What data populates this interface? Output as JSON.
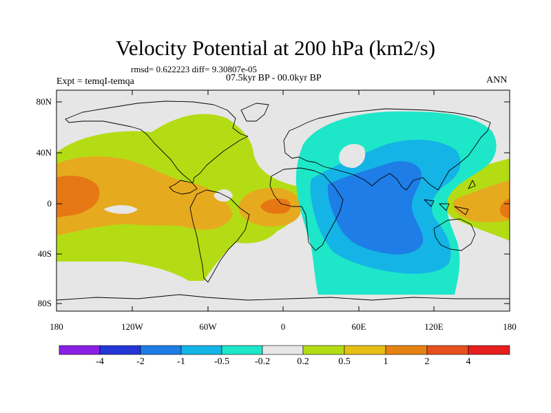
{
  "title": "Velocity Potential at 200 hPa (km2/s)",
  "stats": "rmsd= 0.622223 diff= 9.30807e-05",
  "period": "07.5kyr BP - 00.0kyr BP",
  "experiment": "Expt = temqI-temqa",
  "season": "ANN",
  "lat_labels": [
    "80N",
    "40N",
    "0",
    "40S",
    "80S"
  ],
  "lon_labels": [
    "180",
    "120W",
    "60W",
    "0",
    "60E",
    "120E",
    "180"
  ],
  "colorbar": {
    "labels": [
      "-4",
      "-2",
      "-1",
      "-0.5",
      "-0.2",
      "0.2",
      "0.5",
      "1",
      "2",
      "4"
    ],
    "colors": [
      "#8a1ee6",
      "#2436d6",
      "#1e7de6",
      "#14b4e6",
      "#1ee6c8",
      "#e6e6e6",
      "#b4dc14",
      "#e6be14",
      "#e68214",
      "#e6501e",
      "#e61e1e"
    ]
  },
  "field_colors": {
    "neutral": "#e6e6e6",
    "pos_weak": "#b4dc14",
    "pos_mid": "#e6aa1e",
    "pos_strong": "#e67814",
    "neg_weak": "#1ee6c8",
    "neg_mid": "#14b4e6",
    "neg_strong": "#1e7de6"
  }
}
